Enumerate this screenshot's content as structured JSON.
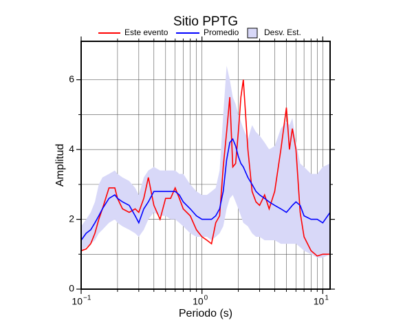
{
  "chart_data": {
    "type": "line",
    "title": "Sitio PPTG",
    "x_label": "Periodo (s)",
    "y_label": "Amplitud",
    "log_x": true,
    "grid": true,
    "xlim": [
      0.1,
      11.5
    ],
    "ylim": [
      0,
      7.1
    ],
    "xticks": [
      {
        "value": 0.1,
        "label": "10",
        "exponent": "−1"
      },
      {
        "value": 1,
        "label": "10",
        "exponent": "0"
      },
      {
        "value": 10,
        "label": "10",
        "exponent": "1"
      }
    ],
    "xminor": [
      0.2,
      0.3,
      0.4,
      0.5,
      0.6,
      0.7,
      0.8,
      0.9,
      2,
      3,
      4,
      5,
      6,
      7,
      8,
      9
    ],
    "yticks": [
      0,
      2,
      4,
      6
    ],
    "yminor": [
      1,
      3,
      5
    ],
    "x": [
      0.1,
      0.11,
      0.12,
      0.13,
      0.14,
      0.15,
      0.17,
      0.19,
      0.2,
      0.22,
      0.25,
      0.28,
      0.3,
      0.33,
      0.36,
      0.4,
      0.45,
      0.5,
      0.55,
      0.6,
      0.65,
      0.7,
      0.8,
      0.9,
      1.0,
      1.1,
      1.2,
      1.3,
      1.4,
      1.5,
      1.6,
      1.7,
      1.8,
      1.9,
      2.0,
      2.1,
      2.2,
      2.4,
      2.6,
      2.8,
      3.0,
      3.3,
      3.6,
      4.0,
      4.5,
      5.0,
      5.3,
      5.6,
      6.0,
      6.5,
      7.0,
      8.0,
      9.0,
      10,
      11.5
    ],
    "band": {
      "name": "Desv. Est.",
      "color": "#d8d8f8",
      "upper": [
        1.8,
        2.0,
        2.2,
        2.5,
        3.0,
        3.2,
        3.3,
        3.4,
        3.3,
        3.2,
        3.1,
        2.9,
        2.7,
        3.2,
        3.4,
        3.5,
        3.4,
        3.4,
        3.4,
        3.4,
        3.3,
        3.3,
        3.0,
        2.8,
        2.7,
        2.7,
        2.8,
        2.9,
        3.4,
        5.0,
        6.4,
        6.0,
        5.5,
        5.3,
        5.0,
        4.8,
        4.6,
        4.3,
        4.7,
        4.5,
        4.4,
        4.2,
        4.0,
        4.1,
        4.6,
        4.8,
        4.7,
        4.9,
        4.2,
        3.6,
        3.5,
        3.3,
        3.3,
        3.5,
        3.6
      ],
      "lower": [
        1.1,
        1.2,
        1.3,
        1.4,
        1.6,
        1.7,
        1.9,
        2.0,
        1.9,
        1.8,
        1.7,
        1.6,
        1.5,
        1.7,
        2.0,
        2.2,
        2.1,
        2.1,
        2.0,
        2.0,
        1.9,
        1.8,
        1.6,
        1.5,
        1.5,
        1.5,
        1.4,
        1.5,
        1.6,
        1.8,
        2.3,
        2.6,
        2.7,
        2.5,
        2.3,
        2.1,
        1.9,
        1.8,
        1.6,
        1.5,
        1.5,
        1.4,
        1.4,
        1.4,
        1.3,
        1.3,
        1.3,
        1.3,
        1.3,
        1.2,
        1.1,
        1.0,
        0.9,
        0.9,
        1.0
      ]
    },
    "series": [
      {
        "name": "Este evento",
        "color": "#ff0000",
        "values": [
          1.1,
          1.15,
          1.3,
          1.6,
          2.0,
          2.3,
          2.9,
          2.9,
          2.6,
          2.3,
          2.2,
          2.3,
          2.2,
          2.6,
          3.2,
          2.4,
          2.0,
          2.6,
          2.6,
          2.9,
          2.6,
          2.3,
          2.1,
          1.7,
          1.5,
          1.4,
          1.3,
          1.9,
          2.1,
          3.5,
          4.5,
          5.5,
          3.5,
          3.6,
          4.5,
          5.5,
          6.0,
          4.0,
          2.8,
          2.5,
          2.4,
          2.7,
          2.3,
          2.8,
          4.0,
          5.2,
          4.0,
          4.6,
          4.0,
          2.2,
          1.5,
          1.1,
          0.95,
          1.0,
          1.0
        ]
      },
      {
        "name": "Promedio",
        "color": "#0000ff",
        "values": [
          1.4,
          1.6,
          1.7,
          1.9,
          2.1,
          2.3,
          2.6,
          2.7,
          2.6,
          2.5,
          2.4,
          2.1,
          1.9,
          2.3,
          2.5,
          2.8,
          2.8,
          2.8,
          2.8,
          2.8,
          2.7,
          2.5,
          2.3,
          2.1,
          2.0,
          2.0,
          2.0,
          2.1,
          2.3,
          2.8,
          3.7,
          4.2,
          4.3,
          4.1,
          3.8,
          3.6,
          3.5,
          3.2,
          3.0,
          2.8,
          2.7,
          2.6,
          2.5,
          2.4,
          2.3,
          2.2,
          2.3,
          2.4,
          2.5,
          2.4,
          2.1,
          2.0,
          2.0,
          1.9,
          2.2
        ]
      }
    ]
  }
}
